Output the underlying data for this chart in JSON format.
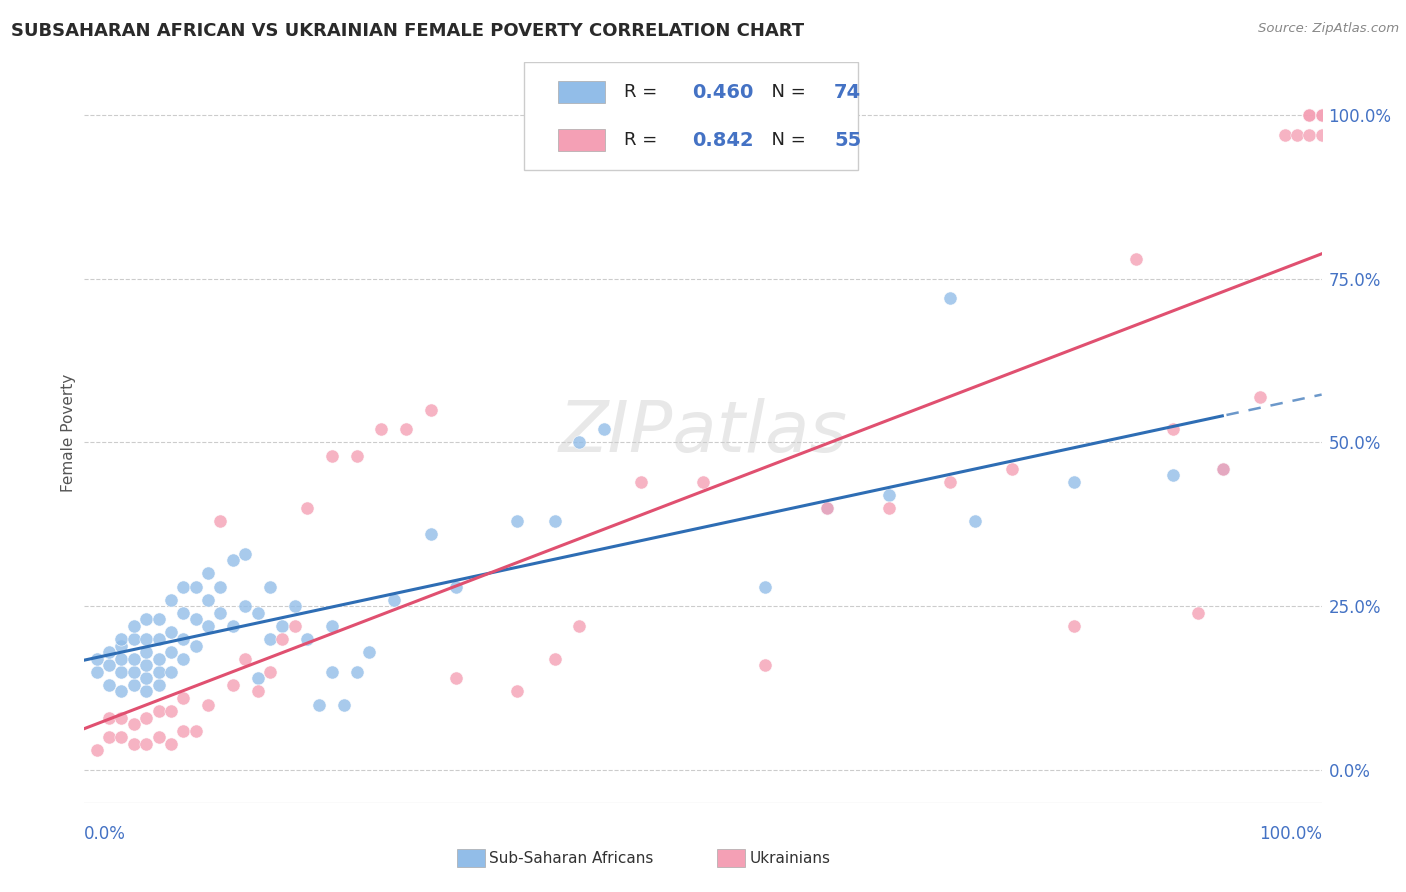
{
  "title": "SUBSAHARAN AFRICAN VS UKRAINIAN FEMALE POVERTY CORRELATION CHART",
  "source": "Source: ZipAtlas.com",
  "ylabel": "Female Poverty",
  "ytick_labels": [
    "0.0%",
    "25.0%",
    "50.0%",
    "75.0%",
    "100.0%"
  ],
  "ytick_values": [
    0.0,
    0.25,
    0.5,
    0.75,
    1.0
  ],
  "xlim": [
    0.0,
    1.0
  ],
  "ylim": [
    -0.05,
    1.08
  ],
  "legend_label1": "Sub-Saharan Africans",
  "legend_label2": "Ukrainians",
  "r1": 0.46,
  "n1": 74,
  "r2": 0.842,
  "n2": 55,
  "color1": "#92BDE8",
  "color2": "#F4A0B5",
  "line_color1": "#2E6DB4",
  "line_color2": "#E05070",
  "watermark": "ZIPatlas",
  "background_color": "#FFFFFF",
  "grid_color": "#CCCCCC",
  "title_color": "#2a2a2a",
  "right_tick_color": "#4472C4",
  "scatter1_x": [
    0.01,
    0.01,
    0.02,
    0.02,
    0.02,
    0.03,
    0.03,
    0.03,
    0.03,
    0.03,
    0.04,
    0.04,
    0.04,
    0.04,
    0.04,
    0.05,
    0.05,
    0.05,
    0.05,
    0.05,
    0.05,
    0.06,
    0.06,
    0.06,
    0.06,
    0.06,
    0.07,
    0.07,
    0.07,
    0.07,
    0.08,
    0.08,
    0.08,
    0.08,
    0.09,
    0.09,
    0.09,
    0.1,
    0.1,
    0.1,
    0.11,
    0.11,
    0.12,
    0.12,
    0.13,
    0.13,
    0.14,
    0.14,
    0.15,
    0.15,
    0.16,
    0.17,
    0.18,
    0.19,
    0.2,
    0.2,
    0.21,
    0.22,
    0.23,
    0.25,
    0.28,
    0.3,
    0.35,
    0.38,
    0.4,
    0.42,
    0.55,
    0.6,
    0.65,
    0.7,
    0.72,
    0.8,
    0.88,
    0.92
  ],
  "scatter1_y": [
    0.15,
    0.17,
    0.13,
    0.16,
    0.18,
    0.12,
    0.15,
    0.17,
    0.19,
    0.2,
    0.13,
    0.15,
    0.17,
    0.2,
    0.22,
    0.12,
    0.14,
    0.16,
    0.18,
    0.2,
    0.23,
    0.13,
    0.15,
    0.17,
    0.2,
    0.23,
    0.15,
    0.18,
    0.21,
    0.26,
    0.17,
    0.2,
    0.24,
    0.28,
    0.19,
    0.23,
    0.28,
    0.22,
    0.26,
    0.3,
    0.24,
    0.28,
    0.22,
    0.32,
    0.25,
    0.33,
    0.14,
    0.24,
    0.2,
    0.28,
    0.22,
    0.25,
    0.2,
    0.1,
    0.15,
    0.22,
    0.1,
    0.15,
    0.18,
    0.26,
    0.36,
    0.28,
    0.38,
    0.38,
    0.5,
    0.52,
    0.28,
    0.4,
    0.42,
    0.72,
    0.38,
    0.44,
    0.45,
    0.46
  ],
  "scatter2_x": [
    0.01,
    0.02,
    0.02,
    0.03,
    0.03,
    0.04,
    0.04,
    0.05,
    0.05,
    0.06,
    0.06,
    0.07,
    0.07,
    0.08,
    0.08,
    0.09,
    0.1,
    0.11,
    0.12,
    0.13,
    0.14,
    0.15,
    0.16,
    0.17,
    0.18,
    0.2,
    0.22,
    0.24,
    0.26,
    0.28,
    0.3,
    0.35,
    0.38,
    0.4,
    0.45,
    0.5,
    0.55,
    0.6,
    0.65,
    0.7,
    0.75,
    0.8,
    0.85,
    0.88,
    0.9,
    0.92,
    0.95,
    0.97,
    0.98,
    0.99,
    0.99,
    0.99,
    1.0,
    1.0,
    1.0
  ],
  "scatter2_y": [
    0.03,
    0.05,
    0.08,
    0.05,
    0.08,
    0.04,
    0.07,
    0.04,
    0.08,
    0.05,
    0.09,
    0.04,
    0.09,
    0.06,
    0.11,
    0.06,
    0.1,
    0.38,
    0.13,
    0.17,
    0.12,
    0.15,
    0.2,
    0.22,
    0.4,
    0.48,
    0.48,
    0.52,
    0.52,
    0.55,
    0.14,
    0.12,
    0.17,
    0.22,
    0.44,
    0.44,
    0.16,
    0.4,
    0.4,
    0.44,
    0.46,
    0.22,
    0.78,
    0.52,
    0.24,
    0.46,
    0.57,
    0.97,
    0.97,
    0.97,
    1.0,
    1.0,
    0.97,
    1.0,
    1.0
  ]
}
